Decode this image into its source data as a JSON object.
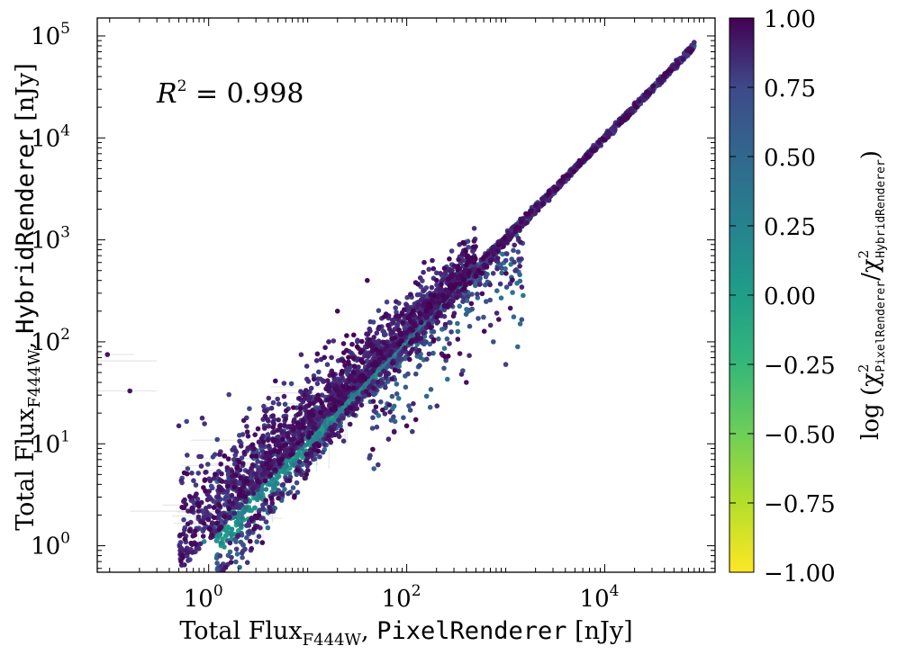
{
  "chart_data": {
    "type": "scatter",
    "xscale": "log",
    "yscale": "log",
    "xlim": [
      0.075,
      130000
    ],
    "ylim": [
      0.55,
      150000
    ],
    "x_ticks": [
      {
        "base": "10",
        "exp": "0"
      },
      {
        "base": "10",
        "exp": "2"
      },
      {
        "base": "10",
        "exp": "4"
      }
    ],
    "y_ticks": [
      {
        "base": "10",
        "exp": "0"
      },
      {
        "base": "10",
        "exp": "1"
      },
      {
        "base": "10",
        "exp": "2"
      },
      {
        "base": "10",
        "exp": "3"
      },
      {
        "base": "10",
        "exp": "4"
      },
      {
        "base": "10",
        "exp": "5"
      }
    ],
    "xlabel": {
      "prefix": "Total Flux",
      "sub": "F444W",
      "sep": ", ",
      "mono": "PixelRenderer",
      "unit": " [nJy]"
    },
    "ylabel": {
      "prefix": "Total Flux",
      "sub": "F444W",
      "sep": ", ",
      "mono": "HybridRenderer",
      "unit": " [nJy]"
    },
    "annotation": {
      "base": "R",
      "exp": "2",
      "rest": " = 0.998"
    },
    "colorbar": {
      "colormap": "viridis",
      "range": [
        -1.0,
        1.0
      ],
      "tick_labels": [
        "1.00",
        "0.75",
        "0.50",
        "0.25",
        "0.00",
        "−0.25",
        "−0.50",
        "−0.75",
        "−1.00"
      ],
      "label": {
        "fn": "log (χ",
        "sup1": "2",
        "sub1": "PixelRenderer",
        "mid": "/χ",
        "sup2": "2",
        "sub2": "HybridRenderer",
        "end": ")"
      }
    },
    "grid": false,
    "series": [
      {
        "values": [
          {
            "x": 0.095,
            "y": 75,
            "c": 0.9
          },
          {
            "x": 0.16,
            "y": 33,
            "c": 0.9
          },
          {
            "x": 0.5,
            "y": 15,
            "c": 0.8
          },
          {
            "x": 0.8,
            "y": 7.5,
            "c": 0.7
          },
          {
            "x": 0.9,
            "y": 1.1,
            "c": 0.05
          },
          {
            "x": 1.3,
            "y": 1.3,
            "c": 0.05
          },
          {
            "x": 2.0,
            "y": 2.1,
            "c": 0.1
          },
          {
            "x": 3.0,
            "y": 3.0,
            "c": 0.05
          },
          {
            "x": 5.0,
            "y": 5.2,
            "c": 0.05
          },
          {
            "x": 8.0,
            "y": 8.0,
            "c": 0.0
          },
          {
            "x": 15.0,
            "y": 15.0,
            "c": 0.05
          },
          {
            "x": 30.0,
            "y": 30.0,
            "c": 0.05
          },
          {
            "x": 60.0,
            "y": 60.0,
            "c": 0.1
          },
          {
            "x": 100.0,
            "y": 100.0,
            "c": 0.0
          },
          {
            "x": 300.0,
            "y": 310.0,
            "c": 0.05
          },
          {
            "x": 1000.0,
            "y": 1000.0,
            "c": 0.05
          },
          {
            "x": 3000.0,
            "y": 3000.0,
            "c": 0.0
          },
          {
            "x": 10000.0,
            "y": 10000.0,
            "c": 0.05
          },
          {
            "x": 30000.0,
            "y": 30000.0,
            "c": 0.1
          },
          {
            "x": 80000.0,
            "y": 80000.0,
            "c": 0.05
          },
          {
            "x": 20.0,
            "y": 200.0,
            "c": 0.95
          },
          {
            "x": 40.0,
            "y": 400.0,
            "c": 0.95
          },
          {
            "x": 150.0,
            "y": 600.0,
            "c": 0.9
          },
          {
            "x": 100.0,
            "y": 15.0,
            "c": 0.95
          },
          {
            "x": 400.0,
            "y": 40.0,
            "c": 0.9
          },
          {
            "x": 1000.0,
            "y": 60.0,
            "c": 0.6
          },
          {
            "x": 1400.0,
            "y": 150.0,
            "c": 0.3
          }
        ]
      }
    ]
  }
}
